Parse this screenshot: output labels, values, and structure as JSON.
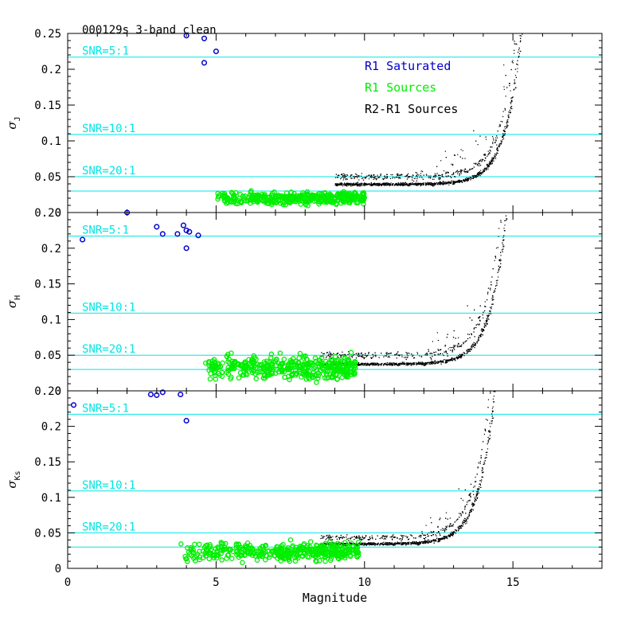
{
  "title": "000129s 3-band clean",
  "legend": [
    {
      "label": "R1 Saturated",
      "color": "#0000cc"
    },
    {
      "label": "R1 Sources",
      "color": "#00ee00"
    },
    {
      "label": "R2-R1 Sources",
      "color": "#000000"
    }
  ],
  "colors": {
    "snr_line": "#00e5e5",
    "saturated": "#0000cc",
    "r1": "#00ee00",
    "r2r1": "#000000",
    "axes": "#000000"
  },
  "chart_data": [
    {
      "type": "scatter",
      "panel": "J",
      "ylabel_symbol": "σ",
      "ylabel_sub": "J",
      "xlim": [
        0,
        18
      ],
      "ylim": [
        0,
        0.25
      ],
      "y_ticks": [
        "0",
        "0.05",
        "0.1",
        "0.15",
        "0.2",
        "0.25"
      ],
      "top_tick_label": "0.25",
      "snr_lines": [
        {
          "label": "SNR=5:1",
          "y": 0.217
        },
        {
          "label": "SNR=10:1",
          "y": 0.109
        },
        {
          "label": "SNR=20:1",
          "y": 0.05
        }
      ],
      "floor_line": 0.03,
      "series": [
        {
          "name": "R1 Saturated",
          "points": [
            [
              4.0,
              0.247
            ],
            [
              4.6,
              0.243
            ],
            [
              5.0,
              0.225
            ],
            [
              4.6,
              0.209
            ]
          ]
        },
        {
          "name": "R1 Sources",
          "x_range": [
            5.0,
            10.0
          ],
          "y_range": [
            0.008,
            0.045
          ]
        },
        {
          "name": "R2-R1 Sources",
          "x_range": [
            9.0,
            17.0
          ],
          "floor": 0.04,
          "knee": 14.5,
          "upper_offset": 0.012
        }
      ]
    },
    {
      "type": "scatter",
      "panel": "H",
      "ylabel_symbol": "σ",
      "ylabel_sub": "H",
      "xlim": [
        0,
        18
      ],
      "ylim": [
        0,
        0.25
      ],
      "y_ticks": [
        "0",
        "0.05",
        "0.1",
        "0.15",
        "0.2"
      ],
      "top_tick_label": "0.20",
      "snr_lines": [
        {
          "label": "SNR=5:1",
          "y": 0.217
        },
        {
          "label": "SNR=10:1",
          "y": 0.109
        },
        {
          "label": "SNR=20:1",
          "y": 0.05
        }
      ],
      "floor_line": 0.03,
      "series": [
        {
          "name": "R1 Saturated",
          "points": [
            [
              0.5,
              0.212
            ],
            [
              2.0,
              0.25
            ],
            [
              3.0,
              0.23
            ],
            [
              3.2,
              0.22
            ],
            [
              3.7,
              0.22
            ],
            [
              3.9,
              0.232
            ],
            [
              4.0,
              0.225
            ],
            [
              4.1,
              0.223
            ],
            [
              4.4,
              0.218
            ],
            [
              4.0,
              0.2
            ]
          ]
        },
        {
          "name": "R1 Sources",
          "x_range": [
            4.5,
            9.7
          ],
          "y_range": [
            0.01,
            0.08
          ]
        },
        {
          "name": "R2-R1 Sources",
          "x_range": [
            8.5,
            17.0
          ],
          "floor": 0.038,
          "knee": 14.0,
          "upper_offset": 0.014
        }
      ]
    },
    {
      "type": "scatter",
      "panel": "Ks",
      "ylabel_symbol": "σ",
      "ylabel_sub": "Ks",
      "xlabel": "Magnitude",
      "xlim": [
        0,
        18
      ],
      "ylim": [
        0,
        0.25
      ],
      "x_ticks": [
        "0",
        "5",
        "10",
        "15"
      ],
      "y_ticks": [
        "0",
        "0.05",
        "0.1",
        "0.15",
        "0.2"
      ],
      "top_tick_label": "0.20",
      "snr_lines": [
        {
          "label": "SNR=5:1",
          "y": 0.217
        },
        {
          "label": "SNR=10:1",
          "y": 0.109
        },
        {
          "label": "SNR=20:1",
          "y": 0.05
        }
      ],
      "floor_line": 0.03,
      "series": [
        {
          "name": "R1 Saturated",
          "points": [
            [
              0.2,
              0.23
            ],
            [
              2.8,
              0.245
            ],
            [
              3.0,
              0.244
            ],
            [
              3.2,
              0.248
            ],
            [
              3.8,
              0.245
            ],
            [
              4.0,
              0.208
            ]
          ]
        },
        {
          "name": "R1 Sources",
          "x_range": [
            3.8,
            9.8
          ],
          "y_range": [
            0.005,
            0.063
          ]
        },
        {
          "name": "R2-R1 Sources",
          "x_range": [
            8.5,
            16.5
          ],
          "floor": 0.035,
          "knee": 13.6,
          "upper_offset": 0.01
        }
      ]
    }
  ]
}
